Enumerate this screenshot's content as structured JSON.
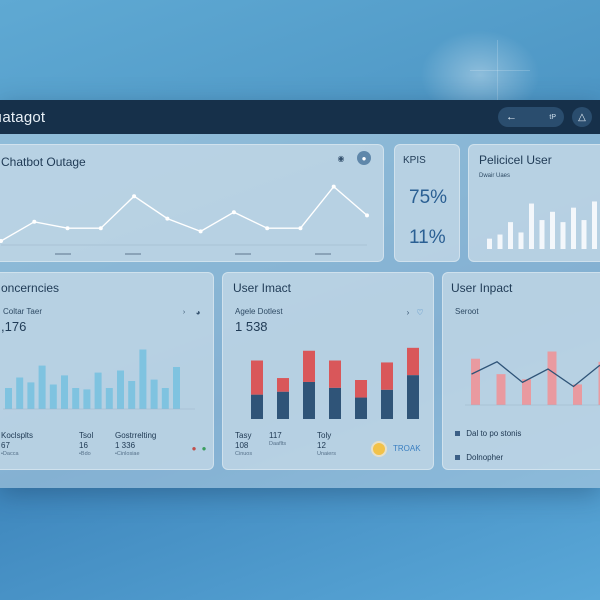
{
  "app": {
    "title": "ıatagot"
  },
  "titlebar": {
    "pill_text": "tP",
    "back_icon": "arrow-left-icon",
    "user_icon": "user-icon"
  },
  "panels": {
    "outage": {
      "title": "Chatbot Outage",
      "icon_left": "lock-icon",
      "icon_right": "camera-icon"
    },
    "kpis": {
      "title": "KPIS",
      "values": [
        "75%",
        "11%"
      ]
    },
    "preferred_user": {
      "title": "Pelicicel User",
      "subtitle": "Dwair Uaes"
    },
    "concerns": {
      "title": "oncerncies",
      "subtitle": "Coltar Taer",
      "big_value": ",176",
      "stats": [
        {
          "label": "Koclsplts",
          "value": "67",
          "detail": "•Dacca"
        },
        {
          "label": "Tsol",
          "value": "16",
          "detail": "•Bdo"
        },
        {
          "label": "Gostrrelting",
          "value": "1 336",
          "detail": "•Cinlosiae"
        }
      ]
    },
    "user_impact_1": {
      "title": "User Imact",
      "subtitle": "Agele Dotlest",
      "big_value": "1 538",
      "stats": [
        {
          "label": "Tasy",
          "value": "108",
          "detail": "Cinuos"
        },
        {
          "label": "",
          "value": "117",
          "detail": "Daaflts"
        },
        {
          "label": "Toly",
          "value": "12",
          "detail": "Unaiers"
        }
      ],
      "badge_text": "TROAK"
    },
    "user_impact_2": {
      "title": "User Inpact",
      "subtitle": "Seroot",
      "rows": [
        "Dal to po stonis",
        "Dolnopher"
      ]
    }
  },
  "chart_data": [
    {
      "type": "line",
      "name": "outage-trend",
      "x": [
        1,
        2,
        3,
        4,
        5,
        6,
        7,
        8,
        9,
        10,
        11,
        12
      ],
      "values": [
        0,
        6,
        4,
        4,
        14,
        7,
        3,
        9,
        4,
        4,
        17,
        8
      ],
      "ylim": [
        0,
        20
      ]
    },
    {
      "type": "bar",
      "name": "preferred-user-bars",
      "values": [
        10,
        14,
        26,
        16,
        44,
        28,
        36,
        26,
        40,
        28,
        46,
        58
      ],
      "ylim": [
        0,
        60
      ]
    },
    {
      "type": "bar",
      "name": "concerns-bars",
      "values": [
        30,
        45,
        38,
        62,
        35,
        48,
        30,
        28,
        52,
        30,
        55,
        40,
        85,
        42,
        30,
        60
      ],
      "ylim": [
        0,
        100
      ]
    },
    {
      "type": "bar",
      "name": "user-impact-stacked",
      "series": [
        {
          "name": "base",
          "values": [
            25,
            28,
            38,
            32,
            22,
            30,
            45
          ]
        },
        {
          "name": "top",
          "values": [
            35,
            14,
            32,
            28,
            18,
            28,
            28
          ]
        }
      ],
      "ylim": [
        0,
        80
      ]
    },
    {
      "type": "bar",
      "name": "user-impact-combo",
      "values": [
        45,
        30,
        25,
        52,
        20,
        42,
        28,
        50
      ],
      "line": [
        30,
        42,
        22,
        35,
        18,
        38,
        52,
        34
      ],
      "ylim": [
        0,
        70
      ]
    }
  ]
}
